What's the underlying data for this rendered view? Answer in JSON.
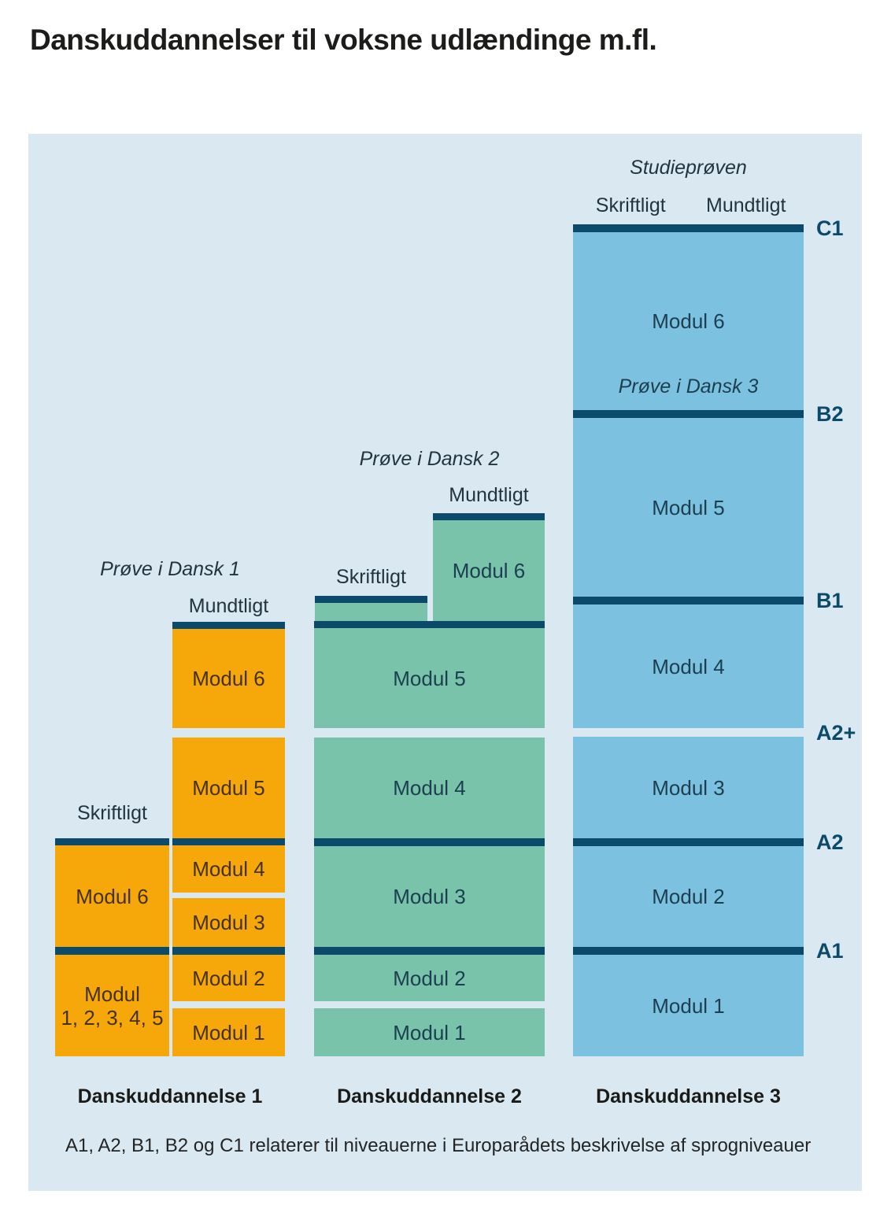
{
  "title": "Danskuddannelser til voksne udlændinge m.fl.",
  "footnote": "A1, A2, B1, B2 og C1 relaterer til niveauerne i Europarådets beskrivelse af sprogniveauer",
  "levels": {
    "c1": "C1",
    "b2": "B2",
    "b1": "B1",
    "a2plus": "A2+",
    "a2": "A2",
    "a1": "A1"
  },
  "colors": {
    "panel_bg": "#dae9f1",
    "orange": "#f6a70a",
    "teal": "#79c3ab",
    "blue": "#7cc2e0",
    "dark_bar": "#0c4a6b"
  },
  "col1": {
    "name": "Danskuddannelse 1",
    "exam_title": "Prøve i Dansk 1",
    "written_label": "Skriftligt",
    "oral_label": "Mundtligt",
    "left": {
      "modul6": "Modul 6",
      "modul_all_line1": "Modul",
      "modul_all_line2": "1, 2, 3, 4, 5"
    },
    "right": {
      "modul6": "Modul 6",
      "modul5": "Modul 5",
      "modul4": "Modul 4",
      "modul3": "Modul 3",
      "modul2": "Modul 2",
      "modul1": "Modul 1"
    }
  },
  "col2": {
    "name": "Danskuddannelse 2",
    "exam_title": "Prøve i Dansk 2",
    "written_label": "Skriftligt",
    "oral_label": "Mundtligt",
    "modul6": "Modul 6",
    "modul5": "Modul 5",
    "modul4": "Modul 4",
    "modul3": "Modul 3",
    "modul2": "Modul 2",
    "modul1": "Modul 1"
  },
  "col3": {
    "name": "Danskuddannelse 3",
    "exam_title": "Studieprøven",
    "written_label": "Skriftligt",
    "oral_label": "Mundtligt",
    "modul6": "Modul 6",
    "exam3_label": "Prøve i Dansk 3",
    "modul5": "Modul 5",
    "modul4": "Modul 4",
    "modul3": "Modul 3",
    "modul2": "Modul 2",
    "modul1": "Modul 1"
  }
}
